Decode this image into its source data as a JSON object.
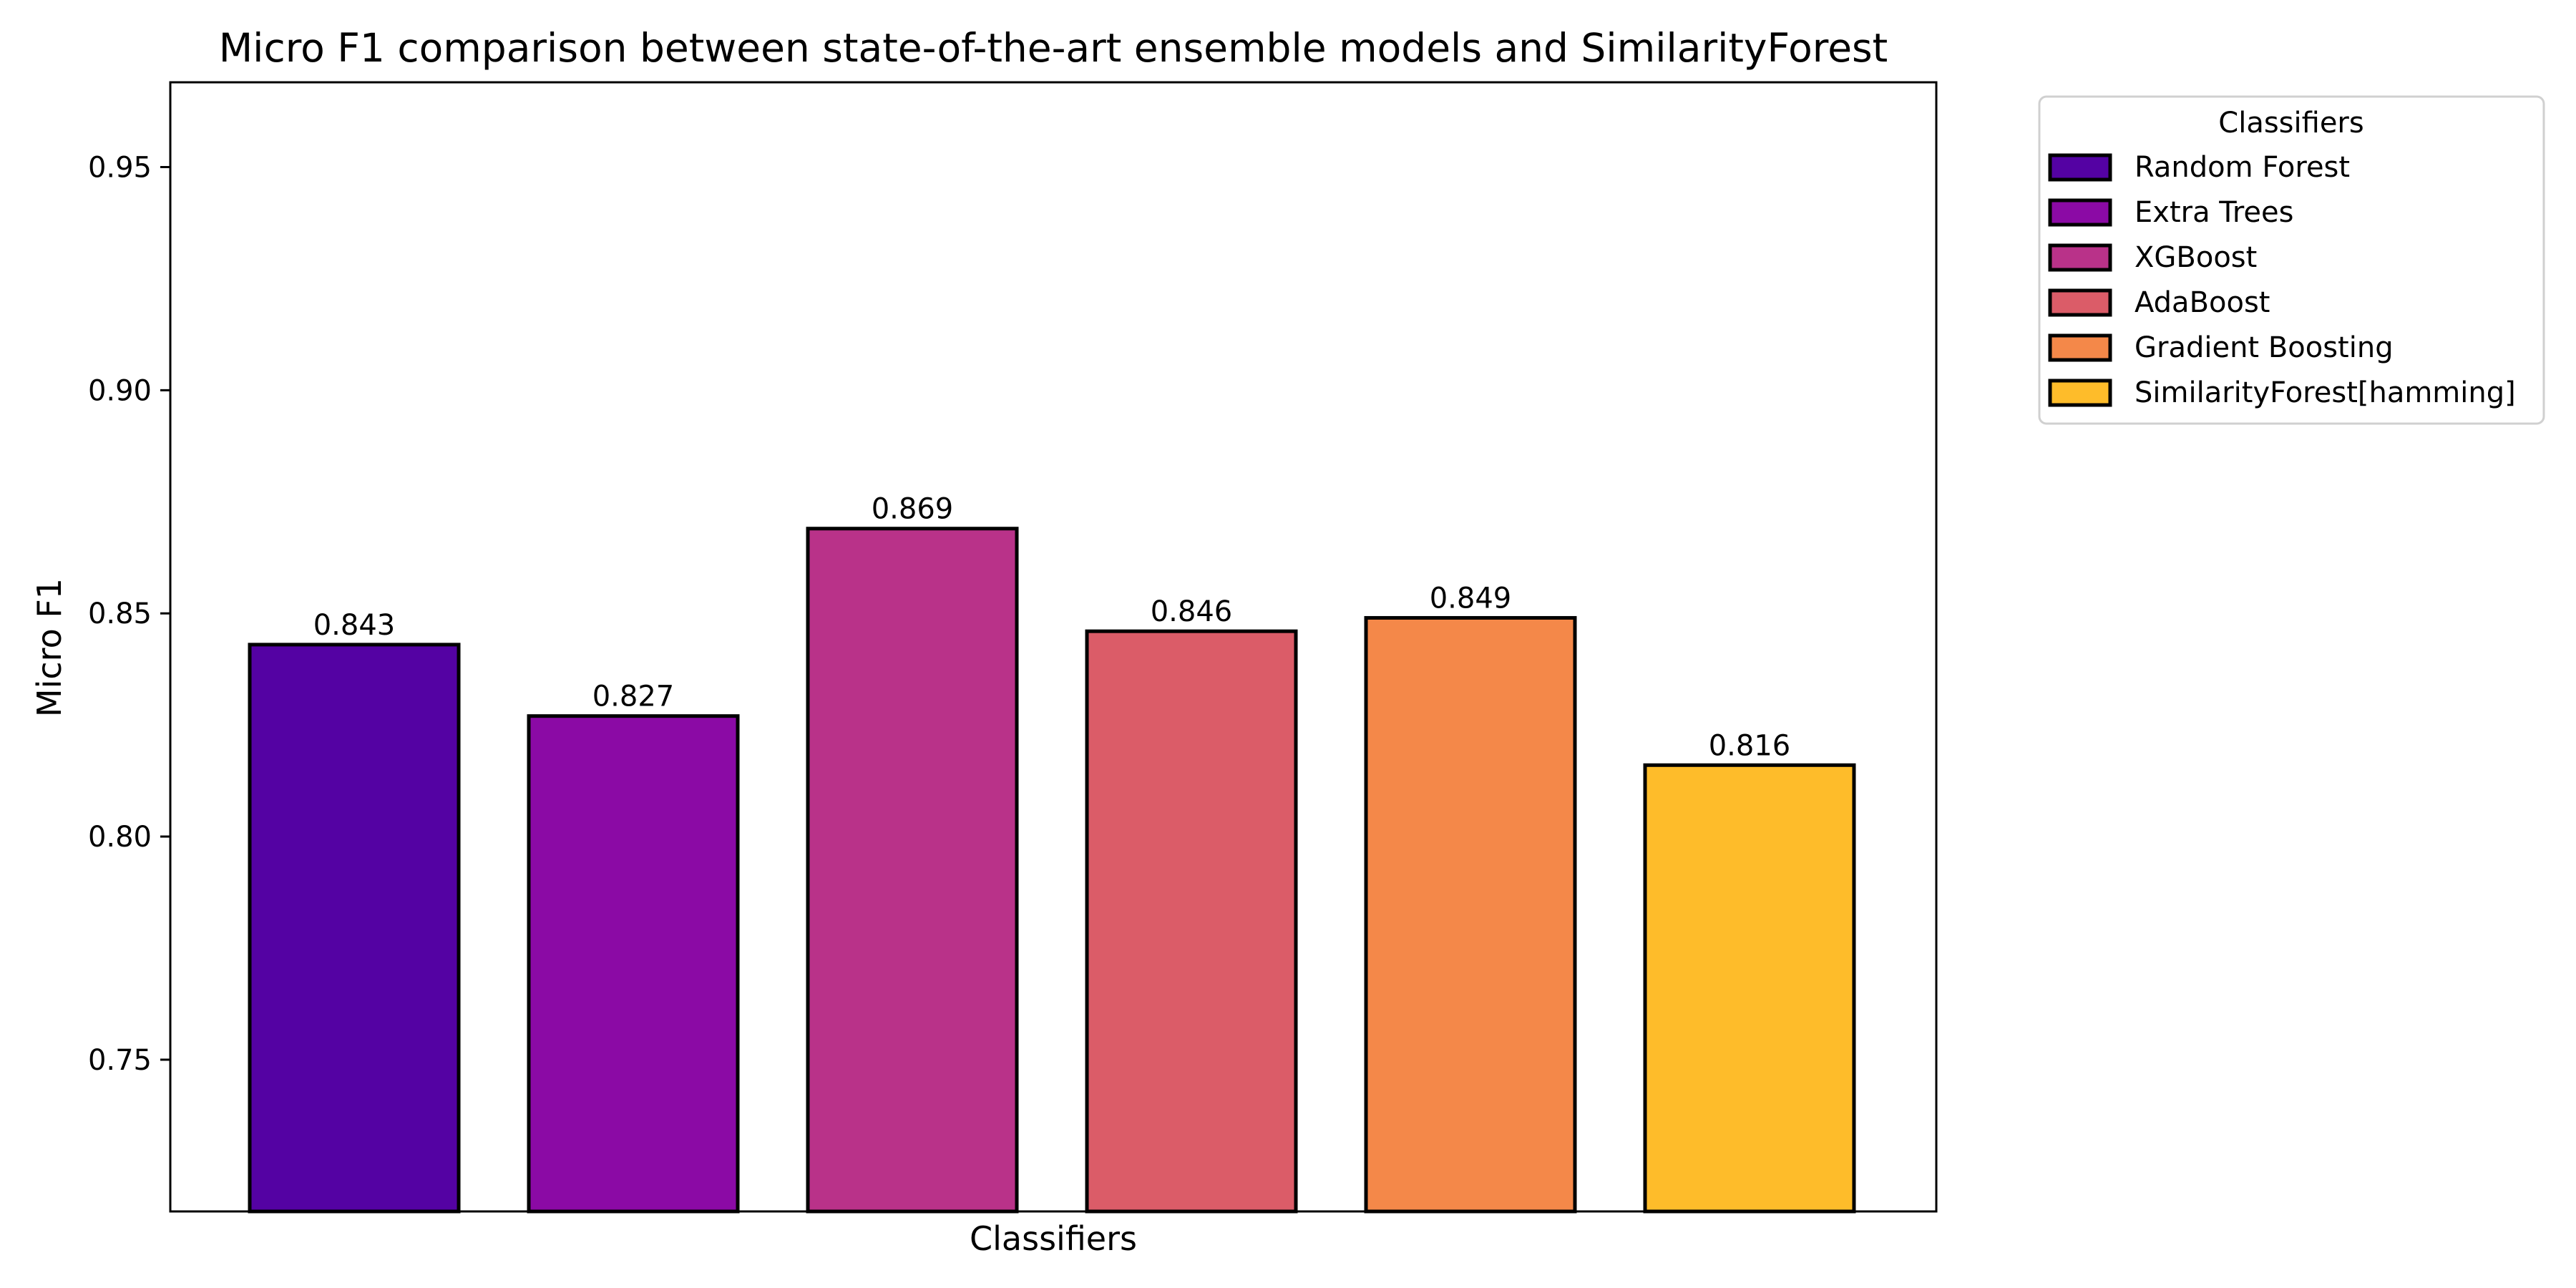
{
  "chart_data": {
    "type": "bar",
    "title": "Micro F1 comparison between state-of-the-art ensemble models and SimilarityForest",
    "xlabel": "Classifiers",
    "ylabel": "Micro F1",
    "ylim": [
      0.716,
      0.969
    ],
    "yticks": [
      0.75,
      0.8,
      0.85,
      0.9,
      0.95
    ],
    "ytick_labels": [
      "0.75",
      "0.80",
      "0.85",
      "0.90",
      "0.95"
    ],
    "grid": false,
    "legend": {
      "title": "Classifiers",
      "placement": "outside top-right"
    },
    "categories": [
      "Random Forest",
      "Extra Trees",
      "XGBoost",
      "AdaBoost",
      "Gradient Boosting",
      "SimilarityForest[hamming]"
    ],
    "values": [
      0.843,
      0.827,
      0.869,
      0.846,
      0.849,
      0.816
    ],
    "value_labels": [
      "0.843",
      "0.827",
      "0.869",
      "0.846",
      "0.849",
      "0.816"
    ],
    "colors": [
      "#5402A3",
      "#8B0AA5",
      "#B93289",
      "#DB5C68",
      "#F48849",
      "#FEBC2A"
    ],
    "edge_color": "#000000"
  }
}
